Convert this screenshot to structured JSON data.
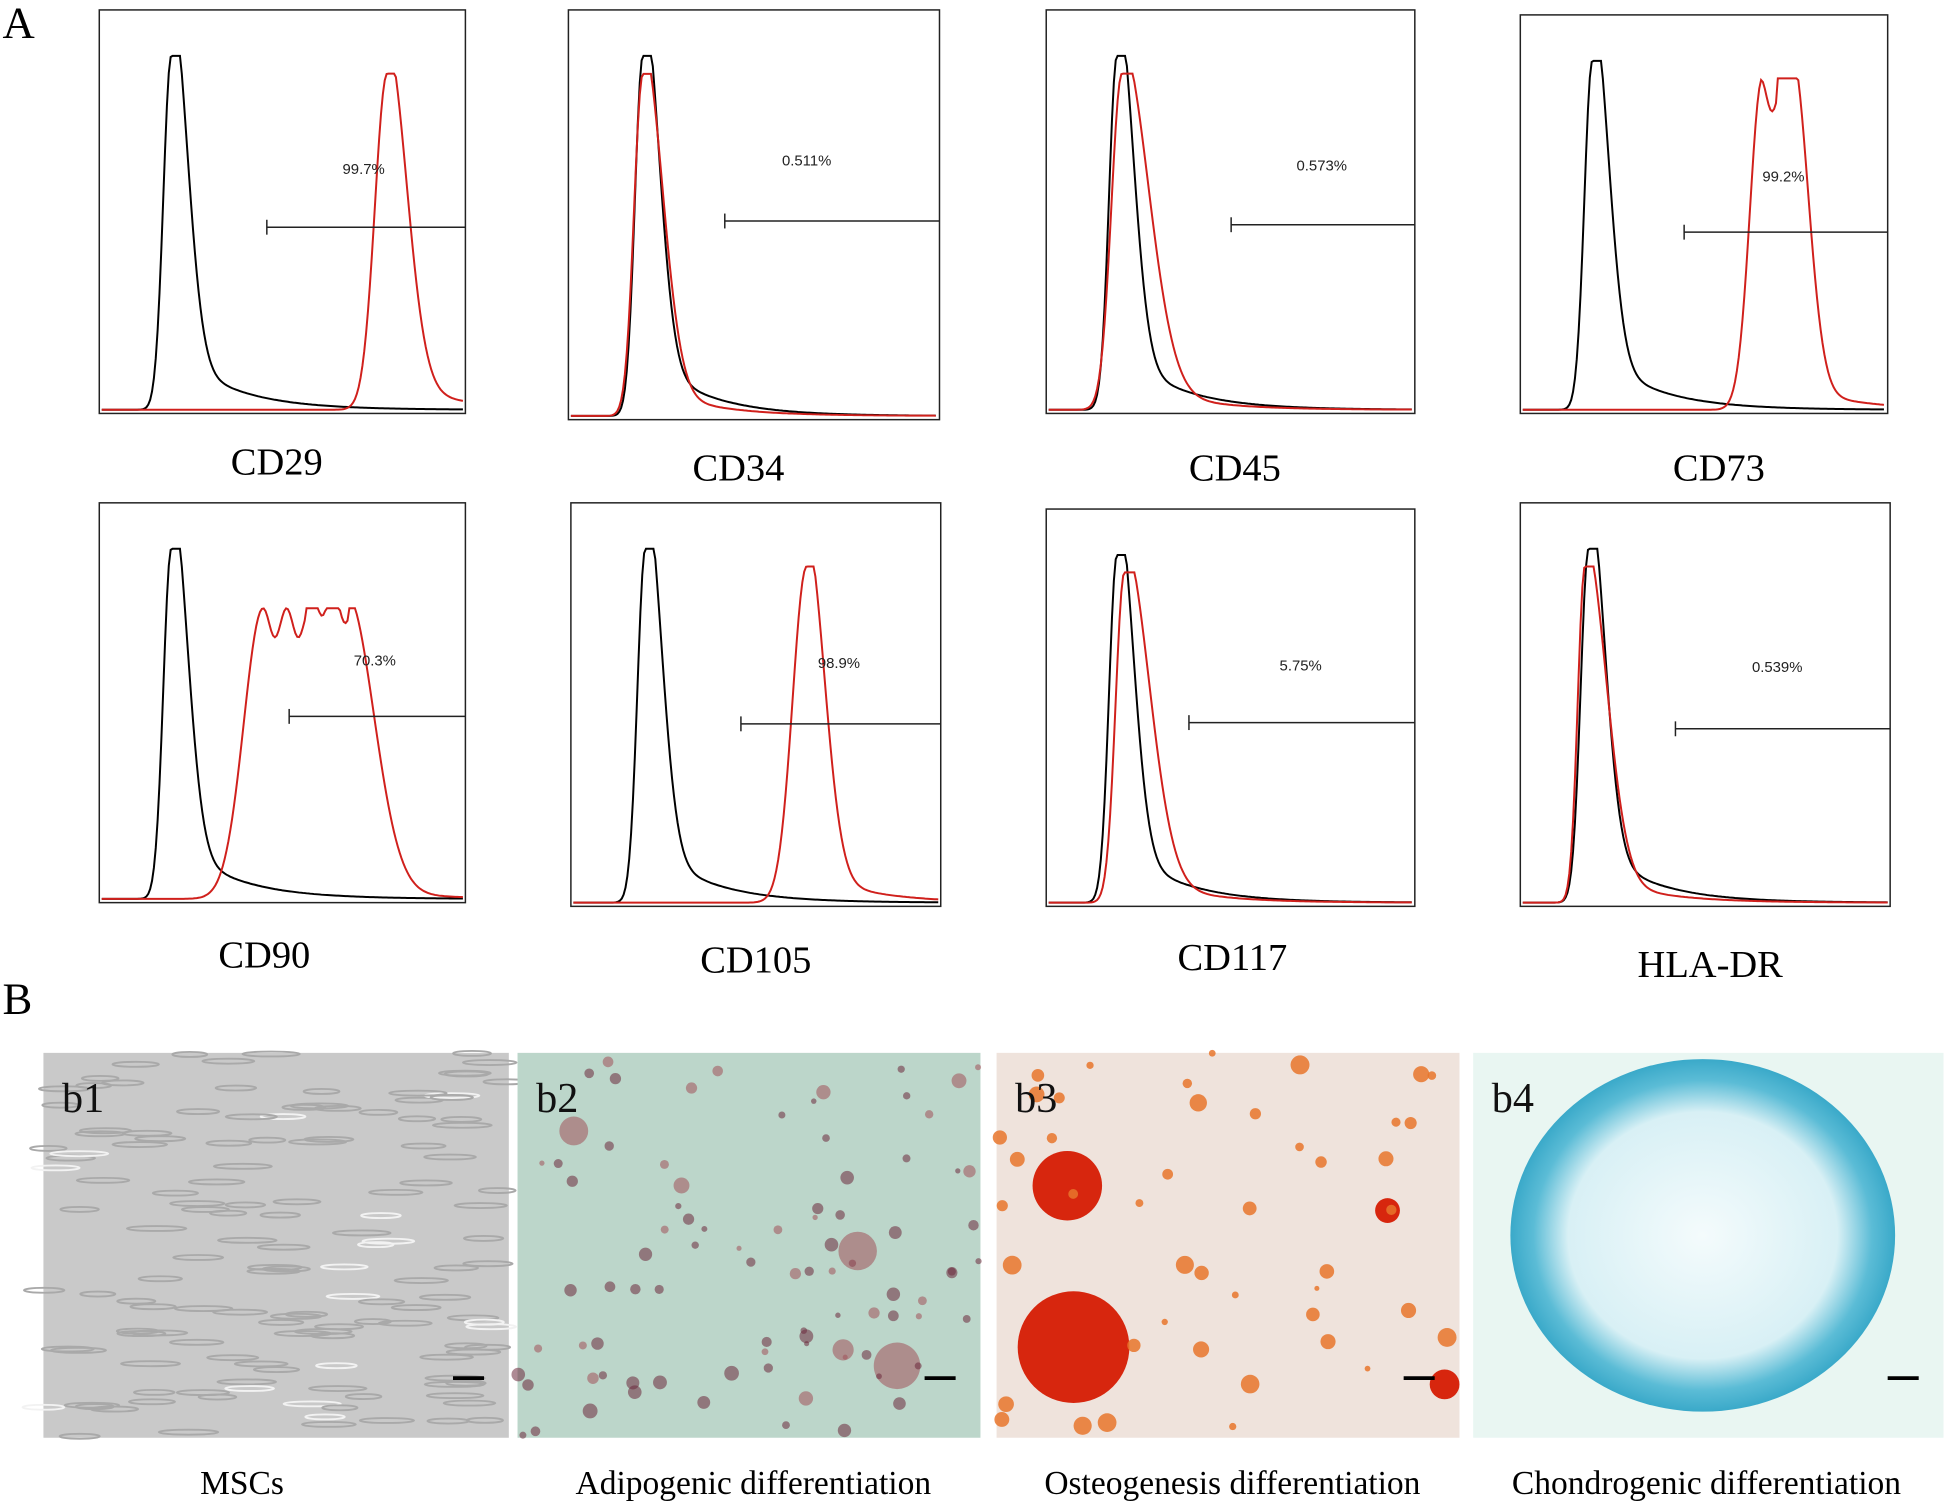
{
  "panel_a": {
    "label": "A",
    "histograms": [
      {
        "marker": "CD29",
        "gate": "99.7%"
      },
      {
        "marker": "CD34",
        "gate": "0.511%"
      },
      {
        "marker": "CD45",
        "gate": "0.573%"
      },
      {
        "marker": "CD73",
        "gate": "99.2%"
      },
      {
        "marker": "CD90",
        "gate": "70.3%"
      },
      {
        "marker": "CD105",
        "gate": "98.9%"
      },
      {
        "marker": "CD117",
        "gate": "5.75%"
      },
      {
        "marker": "HLA-DR",
        "gate": "0.539%"
      }
    ]
  },
  "panel_b": {
    "label": "B",
    "images": [
      {
        "tag": "b1",
        "caption": "MSCs"
      },
      {
        "tag": "b2",
        "caption": "Adipogenic differentiation"
      },
      {
        "tag": "b3",
        "caption": "Osteogenesis differentiation"
      },
      {
        "tag": "b4",
        "caption": "Chondrogenic differentiation"
      }
    ]
  }
}
